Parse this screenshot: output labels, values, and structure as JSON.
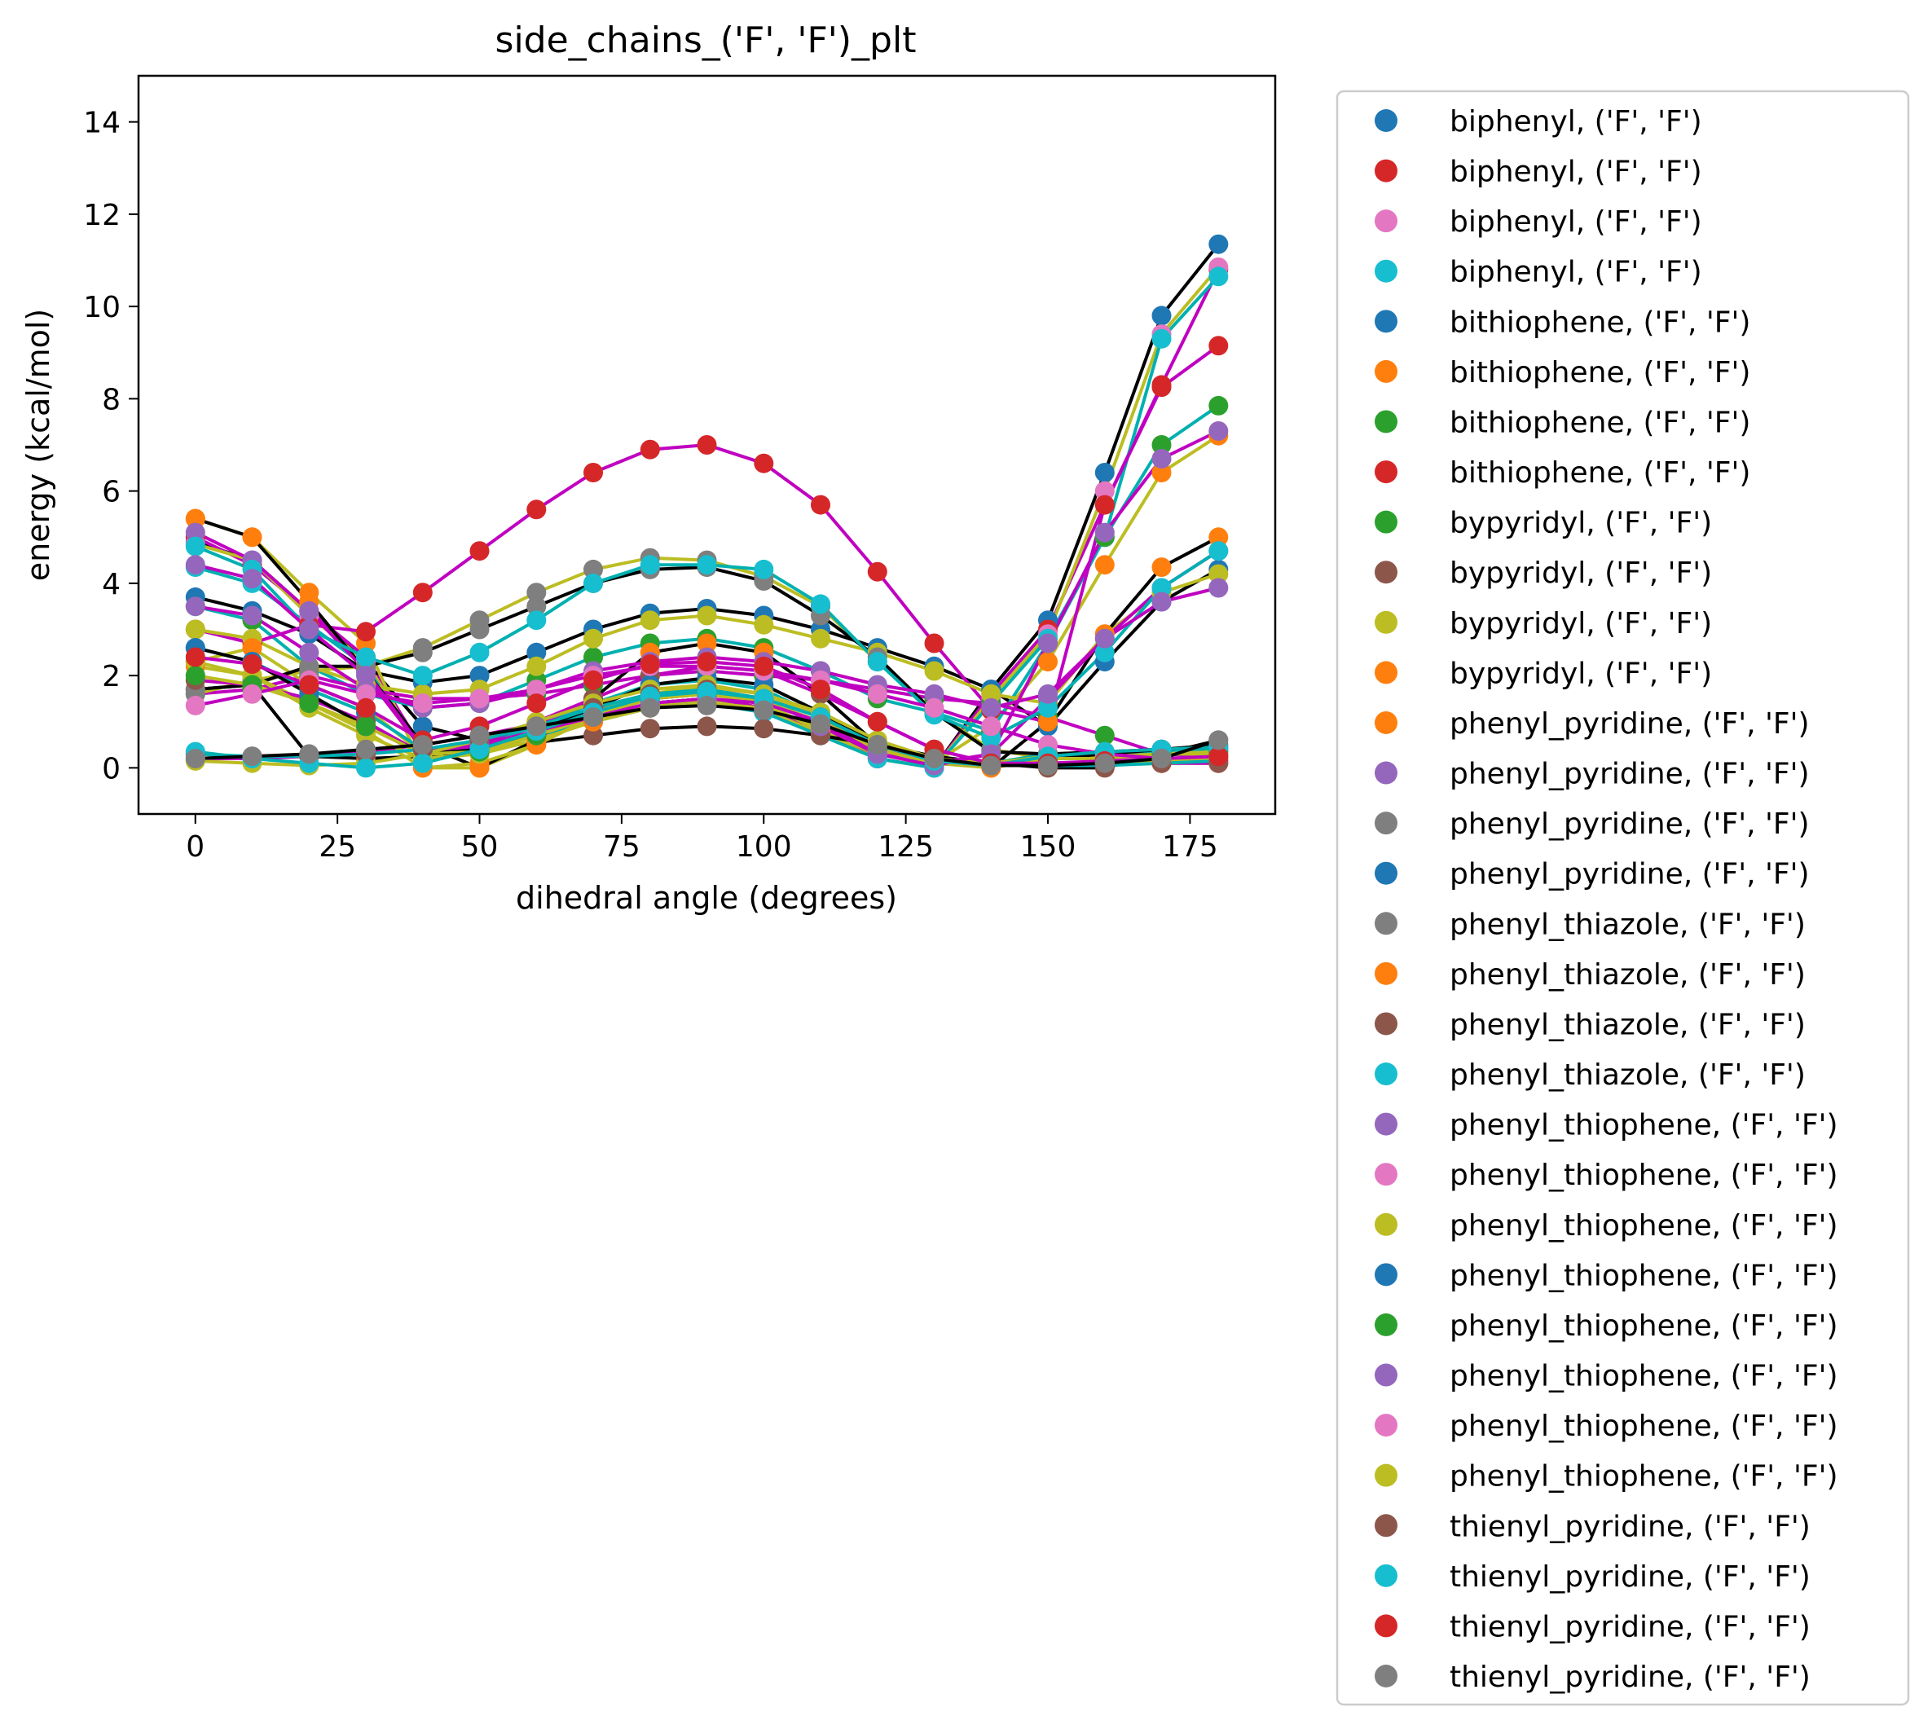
{
  "chart_data": {
    "type": "scatter",
    "title": "side_chains_('F', 'F')_plt",
    "xlabel": "dihedral angle (degrees)",
    "ylabel": "energy (kcal/mol)",
    "xlim": [
      -10,
      190
    ],
    "ylim": [
      -1,
      15
    ],
    "xticks": [
      0,
      25,
      50,
      75,
      100,
      125,
      150,
      175
    ],
    "yticks": [
      0,
      2,
      4,
      6,
      8,
      10,
      12,
      14
    ],
    "legend_position": "outside right",
    "x": [
      0,
      10,
      20,
      30,
      40,
      50,
      60,
      70,
      80,
      90,
      100,
      110,
      120,
      130,
      140,
      150,
      160,
      170,
      180
    ],
    "series": [
      {
        "name": "biphenyl, ('F', 'F')",
        "color": "#1f77b4",
        "line_color": "#000000",
        "values": [
          4.9,
          4.5,
          3.4,
          2.3,
          0.9,
          0.6,
          0.7,
          1.0,
          1.4,
          1.5,
          1.3,
          0.8,
          0.2,
          0.0,
          1.7,
          3.2,
          6.4,
          9.8,
          11.35
        ]
      },
      {
        "name": "biphenyl, ('F', 'F')",
        "color": "#d62728",
        "line_color": "#c000c0",
        "values": [
          5.0,
          4.4,
          3.4,
          2.4,
          0.4,
          0.5,
          0.7,
          1.0,
          1.4,
          1.5,
          1.3,
          0.8,
          0.2,
          0.0,
          1.6,
          3.0,
          5.7,
          8.3,
          10.8
        ]
      },
      {
        "name": "biphenyl, ('F', 'F')",
        "color": "#e377c2",
        "line_color": "#bcbd22",
        "values": [
          4.85,
          4.5,
          3.3,
          2.3,
          0.35,
          0.45,
          0.7,
          1.0,
          1.35,
          1.45,
          1.25,
          0.75,
          0.2,
          0.0,
          1.5,
          2.9,
          6.0,
          9.4,
          10.85
        ]
      },
      {
        "name": "biphenyl, ('F', 'F')",
        "color": "#17becf",
        "line_color": "#00b0b0",
        "values": [
          4.35,
          4.0,
          3.1,
          2.2,
          0.35,
          0.45,
          0.7,
          1.0,
          1.3,
          1.4,
          1.2,
          0.7,
          0.2,
          0.0,
          1.4,
          2.8,
          5.0,
          9.3,
          10.65
        ]
      },
      {
        "name": "bithiophene, ('F', 'F')",
        "color": "#1f77b4",
        "line_color": "#000000",
        "values": [
          3.7,
          3.4,
          2.9,
          2.1,
          1.85,
          2.0,
          2.5,
          3.0,
          3.35,
          3.45,
          3.3,
          3.0,
          2.6,
          2.2,
          1.7,
          0.9,
          2.3,
          3.6,
          4.3
        ]
      },
      {
        "name": "bithiophene, ('F', 'F')",
        "color": "#ff7f0e",
        "line_color": "#bcbd22",
        "values": [
          5.4,
          5.0,
          3.8,
          2.7,
          0.0,
          0.0,
          0.5,
          1.1,
          1.5,
          1.6,
          1.4,
          0.8,
          0.3,
          0.1,
          0.9,
          2.3,
          4.4,
          6.4,
          7.2
        ]
      },
      {
        "name": "bithiophene, ('F', 'F')",
        "color": "#2ca02c",
        "line_color": "#00b0b0",
        "values": [
          3.5,
          3.2,
          2.2,
          1.6,
          1.3,
          1.4,
          1.9,
          2.4,
          2.7,
          2.8,
          2.6,
          2.1,
          1.5,
          1.2,
          0.8,
          2.7,
          5.0,
          7.0,
          7.85
        ]
      },
      {
        "name": "bithiophene, ('F', 'F')",
        "color": "#d62728",
        "line_color": "#c000c0",
        "values": [
          3.0,
          2.7,
          3.1,
          2.95,
          3.8,
          4.7,
          5.6,
          6.4,
          6.9,
          7.0,
          6.6,
          5.7,
          4.25,
          2.7,
          1.25,
          1.0,
          5.7,
          8.25,
          9.15
        ]
      },
      {
        "name": "bypyridyl, ('F', 'F')",
        "color": "#2ca02c",
        "line_color": "#c000c0",
        "values": [
          1.6,
          1.7,
          2.0,
          1.7,
          1.5,
          1.5,
          1.6,
          1.8,
          2.0,
          2.1,
          2.0,
          1.9,
          1.7,
          1.5,
          1.4,
          1.1,
          0.7,
          0.3,
          0.25
        ]
      },
      {
        "name": "bypyridyl, ('F', 'F')",
        "color": "#8c564b",
        "line_color": "#000000",
        "values": [
          1.7,
          1.8,
          0.25,
          0.2,
          0.25,
          0.4,
          0.55,
          0.7,
          0.85,
          0.9,
          0.85,
          0.7,
          0.5,
          0.25,
          0.1,
          0.0,
          0.0,
          0.3,
          0.6
        ]
      },
      {
        "name": "bypyridyl, ('F', 'F')",
        "color": "#bcbd22",
        "line_color": "#bcbd22",
        "values": [
          3.0,
          2.8,
          2.2,
          1.8,
          1.6,
          1.7,
          2.2,
          2.8,
          3.2,
          3.3,
          3.1,
          2.8,
          2.5,
          2.1,
          1.6,
          1.4,
          2.9,
          3.8,
          4.2
        ]
      },
      {
        "name": "bypyridyl, ('F', 'F')",
        "color": "#ff7f0e",
        "line_color": "#bcbd22",
        "values": [
          2.3,
          2.6,
          1.8,
          1.3,
          0.3,
          0.3,
          0.6,
          1.0,
          1.3,
          1.4,
          1.3,
          0.9,
          0.4,
          0.2,
          0.1,
          0.3,
          0.3,
          0.4,
          0.45
        ]
      },
      {
        "name": "phenyl_pyridine, ('F', 'F')",
        "color": "#ff7f0e",
        "line_color": "#000000",
        "values": [
          5.4,
          5.0,
          3.6,
          2.1,
          0.5,
          0.0,
          0.6,
          1.5,
          2.5,
          2.7,
          2.5,
          1.6,
          0.5,
          0.2,
          0.0,
          1.0,
          2.9,
          4.35,
          5.0
        ]
      },
      {
        "name": "phenyl_pyridine, ('F', 'F')",
        "color": "#9467bd",
        "line_color": "#c000c0",
        "values": [
          5.1,
          4.5,
          3.4,
          2.1,
          0.4,
          0.4,
          0.8,
          1.3,
          1.6,
          1.7,
          1.5,
          0.9,
          0.3,
          0.1,
          0.3,
          1.5,
          2.8,
          3.9,
          4.7
        ]
      },
      {
        "name": "phenyl_pyridine, ('F', 'F')",
        "color": "#7f7f7f",
        "line_color": "#bcbd22",
        "values": [
          1.6,
          1.9,
          2.1,
          2.2,
          2.6,
          3.2,
          3.8,
          4.3,
          4.55,
          4.5,
          4.15,
          3.5,
          2.3,
          1.2,
          0.4,
          0.2,
          0.2,
          0.3,
          0.3
        ]
      },
      {
        "name": "phenyl_pyridine, ('F', 'F')",
        "color": "#1f77b4",
        "line_color": "#00b0b0",
        "values": [
          2.6,
          2.3,
          1.7,
          1.2,
          0.4,
          0.5,
          0.9,
          1.4,
          1.8,
          1.9,
          1.7,
          1.1,
          0.4,
          0.1,
          0.1,
          0.3,
          0.3,
          0.35,
          0.4
        ]
      },
      {
        "name": "phenyl_thiazole, ('F', 'F')",
        "color": "#7f7f7f",
        "line_color": "#000000",
        "values": [
          1.7,
          1.8,
          2.2,
          2.2,
          2.5,
          3.0,
          3.5,
          4.0,
          4.3,
          4.35,
          4.05,
          3.3,
          2.4,
          1.2,
          0.35,
          0.3,
          0.35,
          0.4,
          0.45
        ]
      },
      {
        "name": "phenyl_thiazole, ('F', 'F')",
        "color": "#ff7f0e",
        "line_color": "#bcbd22",
        "values": [
          2.2,
          2.0,
          1.4,
          0.8,
          0.0,
          0.1,
          0.5,
          1.1,
          1.6,
          1.8,
          1.6,
          1.1,
          0.4,
          0.1,
          0.0,
          0.2,
          0.2,
          0.1,
          0.1
        ]
      },
      {
        "name": "phenyl_thiazole, ('F', 'F')",
        "color": "#8c564b",
        "line_color": "#c000c0",
        "values": [
          1.9,
          1.8,
          1.5,
          1.0,
          0.3,
          0.5,
          1.0,
          1.5,
          2.0,
          2.2,
          2.1,
          1.6,
          1.0,
          0.4,
          0.1,
          0.1,
          0.1,
          0.1,
          0.1
        ]
      },
      {
        "name": "phenyl_thiazole, ('F', 'F')",
        "color": "#17becf",
        "line_color": "#00b0b0",
        "values": [
          4.8,
          4.3,
          3.0,
          2.4,
          2.0,
          2.5,
          3.2,
          4.0,
          4.4,
          4.4,
          4.3,
          3.55,
          2.3,
          1.15,
          0.65,
          1.3,
          2.5,
          3.9,
          4.7
        ]
      },
      {
        "name": "phenyl_thiophene, ('F', 'F')",
        "color": "#9467bd",
        "line_color": "#c000c0",
        "values": [
          3.5,
          3.3,
          2.5,
          1.7,
          1.3,
          1.4,
          1.7,
          2.1,
          2.3,
          2.4,
          2.3,
          2.1,
          1.8,
          1.6,
          1.3,
          1.6,
          2.8,
          3.6,
          3.9
        ]
      },
      {
        "name": "phenyl_thiophene, ('F', 'F')",
        "color": "#e377c2",
        "line_color": "#c000c0",
        "values": [
          0.2,
          0.2,
          0.25,
          0.35,
          0.5,
          0.7,
          0.95,
          1.25,
          1.5,
          1.6,
          1.45,
          1.0,
          0.4,
          0.1,
          0.05,
          0.05,
          0.1,
          0.15,
          0.2
        ]
      },
      {
        "name": "phenyl_thiophene, ('F', 'F')",
        "color": "#bcbd22",
        "line_color": "#bcbd22",
        "values": [
          2.3,
          2.0,
          1.3,
          0.7,
          0.2,
          0.3,
          0.7,
          1.2,
          1.6,
          1.75,
          1.6,
          1.1,
          0.5,
          0.15,
          0.1,
          0.25,
          0.25,
          0.3,
          0.35
        ]
      },
      {
        "name": "phenyl_thiophene, ('F', 'F')",
        "color": "#1f77b4",
        "line_color": "#000000",
        "values": [
          2.6,
          2.3,
          1.6,
          0.9,
          0.3,
          0.4,
          0.8,
          1.3,
          1.8,
          1.95,
          1.8,
          1.2,
          0.5,
          0.15,
          0.05,
          0.2,
          0.3,
          0.4,
          0.5
        ]
      },
      {
        "name": "phenyl_thiophene, ('F', 'F')",
        "color": "#2ca02c",
        "line_color": "#bcbd22",
        "values": [
          2.0,
          1.8,
          1.4,
          0.9,
          0.3,
          0.35,
          0.7,
          1.1,
          1.5,
          1.6,
          1.45,
          1.0,
          0.4,
          0.1,
          0.05,
          0.2,
          0.2,
          0.3,
          0.35
        ]
      },
      {
        "name": "phenyl_thiophene, ('F', 'F')",
        "color": "#9467bd",
        "line_color": "#c000c0",
        "values": [
          4.4,
          4.1,
          3.0,
          2.0,
          0.4,
          0.5,
          0.8,
          1.1,
          1.4,
          1.5,
          1.4,
          1.0,
          0.3,
          0.05,
          0.3,
          2.7,
          5.1,
          6.7,
          7.3
        ]
      },
      {
        "name": "phenyl_thiophene, ('F', 'F')",
        "color": "#e377c2",
        "line_color": "#c000c0",
        "values": [
          1.35,
          1.6,
          1.9,
          1.6,
          1.4,
          1.5,
          1.7,
          2.0,
          2.2,
          2.2,
          2.1,
          1.9,
          1.6,
          1.3,
          0.9,
          0.5,
          0.3,
          0.2,
          0.15
        ]
      },
      {
        "name": "phenyl_thiophene, ('F', 'F')",
        "color": "#bcbd22",
        "line_color": "#bcbd22",
        "values": [
          0.15,
          0.1,
          0.05,
          0.1,
          0.3,
          0.6,
          1.0,
          1.4,
          1.7,
          1.8,
          1.6,
          1.2,
          0.6,
          0.2,
          0.05,
          0.05,
          0.1,
          0.15,
          0.2
        ]
      },
      {
        "name": "thienyl_pyridine, ('F', 'F')",
        "color": "#8c564b",
        "line_color": "#00b0b0",
        "values": [
          0.3,
          0.25,
          0.25,
          0.3,
          0.4,
          0.6,
          0.9,
          1.3,
          1.6,
          1.7,
          1.5,
          1.1,
          0.5,
          0.15,
          0.05,
          0.05,
          0.05,
          0.1,
          0.15
        ]
      },
      {
        "name": "thienyl_pyridine, ('F', 'F')",
        "color": "#17becf",
        "line_color": "#00b0b0",
        "values": [
          0.35,
          0.2,
          0.1,
          0.0,
          0.1,
          0.4,
          0.8,
          1.2,
          1.55,
          1.65,
          1.5,
          1.1,
          0.5,
          0.15,
          0.05,
          0.25,
          0.35,
          0.4,
          0.45
        ]
      },
      {
        "name": "thienyl_pyridine, ('F', 'F')",
        "color": "#d62728",
        "line_color": "#c000c0",
        "values": [
          2.4,
          2.25,
          1.8,
          1.3,
          0.6,
          0.9,
          1.4,
          1.9,
          2.25,
          2.3,
          2.2,
          1.7,
          1.0,
          0.4,
          0.1,
          0.1,
          0.15,
          0.2,
          0.25
        ]
      },
      {
        "name": "thienyl_pyridine, ('F', 'F')",
        "color": "#7f7f7f",
        "line_color": "#000000",
        "values": [
          0.2,
          0.25,
          0.3,
          0.4,
          0.5,
          0.7,
          0.9,
          1.1,
          1.3,
          1.35,
          1.25,
          0.95,
          0.5,
          0.2,
          0.05,
          0.05,
          0.1,
          0.2,
          0.6
        ]
      }
    ]
  }
}
